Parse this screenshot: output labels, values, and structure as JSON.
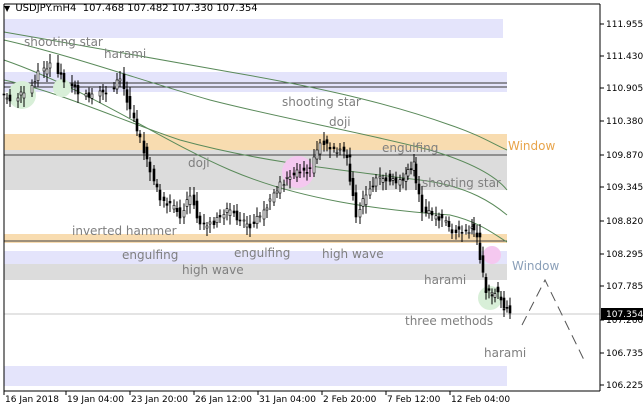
{
  "header": {
    "arrow_icon": "triangle-down-icon",
    "title": "USDJPY.mH4",
    "ohlc": "107.468 107.482 107.330 107.354"
  },
  "price_axis": {
    "ticks": [
      "111.955",
      "111.430",
      "110.905",
      "110.380",
      "109.870",
      "109.345",
      "108.820",
      "108.295",
      "107.785",
      "107.260",
      "106.735",
      "106.225"
    ],
    "current_price": "107.354"
  },
  "time_axis": {
    "ticks": [
      "16 Jan 2018",
      "19 Jan 04:00",
      "23 Jan 20:00",
      "26 Jan 12:00",
      "31 Jan 04:00",
      "2 Feb 20:00",
      "7 Feb 12:00",
      "12 Feb 04:00"
    ]
  },
  "pattern_labels": {
    "shooting_star_1": "shooting star",
    "harami_1": "harami",
    "shooting_star_2": "shooting star",
    "doji_1": "doji",
    "doji_2": "doji",
    "engulfing_1": "engulfing",
    "shooting_star_3": "shooting star",
    "inverted_hammer": "inverted hammer",
    "engulfing_2": "engulfing",
    "engulfing_3": "engulfing",
    "high_wave_1": "high wave",
    "high_wave_2": "high wave",
    "harami_2": "harami",
    "three_methods": "three methods",
    "harami_3": "harami",
    "window_1": "Window",
    "window_2": "Window"
  },
  "colors": {
    "bull": "#000000",
    "bear": "#000000",
    "zone_blue": "#e4e4fb",
    "zone_gray": "#dcdcdc",
    "zone_orange": "#f8dcb0",
    "ma_green": "#5a8a5a",
    "window_orange": "#e8a44a",
    "window_blue": "#8a9fb8"
  }
}
